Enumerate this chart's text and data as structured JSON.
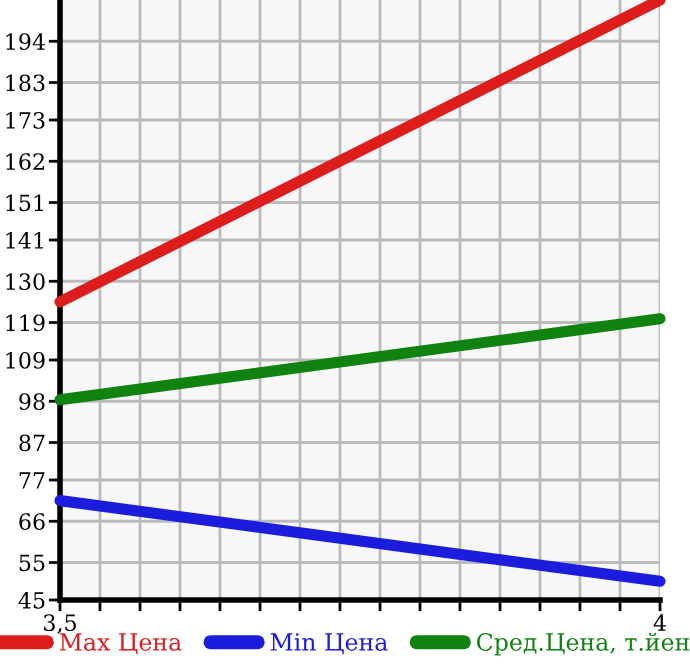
{
  "chart_data": {
    "type": "line",
    "x": [
      3.5,
      4
    ],
    "series": [
      {
        "name": "Max Цена",
        "color": "#dd1c1c",
        "values": [
          124.5,
          205
        ]
      },
      {
        "name": "Min Цена",
        "color": "#1c1cdd",
        "values": [
          71.5,
          50
        ]
      },
      {
        "name": "Сред.Цена, т.йен",
        "color": "#0f820f",
        "values": [
          98.4,
          120
        ]
      }
    ],
    "xlim": [
      3.5,
      4
    ],
    "xticks": [
      {
        "value": 3.5,
        "label": "3,5"
      },
      {
        "value": 3.5333,
        "label": null
      },
      {
        "value": 3.5667,
        "label": null
      },
      {
        "value": 3.6,
        "label": null
      },
      {
        "value": 3.6333,
        "label": null
      },
      {
        "value": 3.6667,
        "label": null
      },
      {
        "value": 3.7,
        "label": null
      },
      {
        "value": 3.7333,
        "label": null
      },
      {
        "value": 3.7667,
        "label": null
      },
      {
        "value": 3.8,
        "label": null
      },
      {
        "value": 3.8333,
        "label": null
      },
      {
        "value": 3.8667,
        "label": null
      },
      {
        "value": 3.9,
        "label": null
      },
      {
        "value": 3.9333,
        "label": null
      },
      {
        "value": 3.9667,
        "label": null
      },
      4
    ],
    "ylim": [
      45,
      205
    ],
    "yticks": [
      45,
      55,
      66,
      77,
      87,
      98,
      109,
      119,
      130,
      141,
      151,
      162,
      173,
      183,
      194
    ],
    "grid": true,
    "legend": "bottom",
    "marker": "none",
    "line_style": "solid"
  }
}
